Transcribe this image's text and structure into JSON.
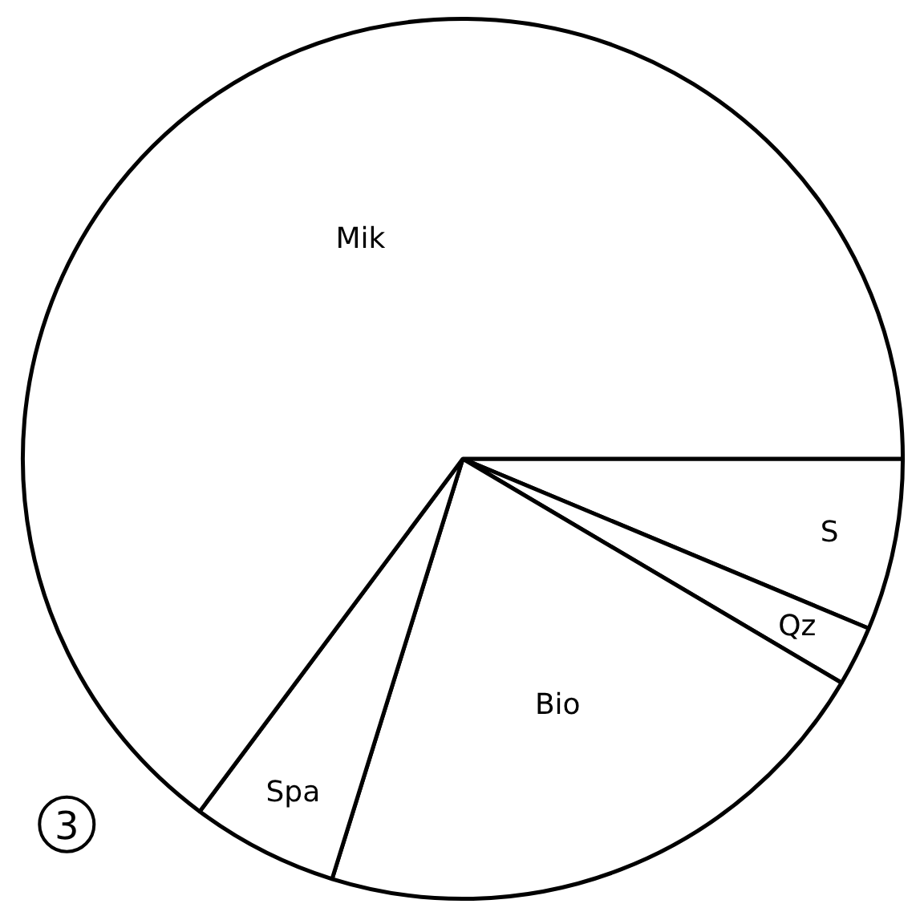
{
  "chart_data": {
    "type": "pie",
    "categories": [
      "S",
      "Qz",
      "Bio",
      "Spa",
      "Mik"
    ],
    "values": [
      6.3,
      2.2,
      21.3,
      5.4,
      64.8
    ],
    "colors": [
      "#ffffff",
      "#ffffff",
      "#ffffff",
      "#ffffff",
      "#ffffff"
    ],
    "annotations": [
      "3"
    ]
  }
}
